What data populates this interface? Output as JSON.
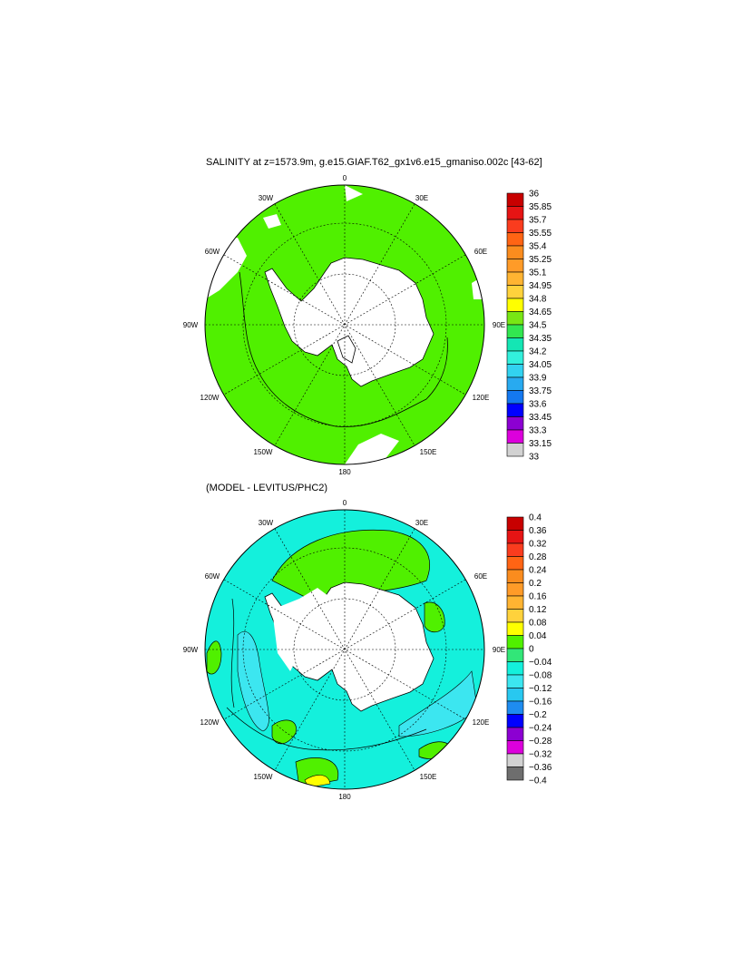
{
  "panels": [
    {
      "title": "SALINITY at z=1573.9m, g.e15.GIAF.T62_gx1v6.e15_gmaniso.002c [43-62]",
      "lon_labels": {
        "n": "0",
        "ne": "30E",
        "ene": "60E",
        "e": "90E",
        "ese": "120E",
        "se": "150E",
        "s": "180",
        "sw": "150W",
        "wsw": "120W",
        "w": "90W",
        "wnw": "60W",
        "nw": "30W"
      },
      "colorbar": {
        "labels": [
          "36",
          "35.85",
          "35.7",
          "35.55",
          "35.4",
          "35.25",
          "35.1",
          "34.95",
          "34.8",
          "34.65",
          "34.5",
          "34.35",
          "34.2",
          "34.05",
          "33.9",
          "33.75",
          "33.6",
          "33.45",
          "33.3",
          "33.15",
          "33"
        ],
        "colors": [
          "#c80000",
          "#e61414",
          "#fa3c1e",
          "#ff6414",
          "#fa8c1e",
          "#ff9b28",
          "#ffb432",
          "#ffd23c",
          "#ffff00",
          "#78e614",
          "#32e650",
          "#14e6b4",
          "#32f0dc",
          "#32d2f0",
          "#28aaf0",
          "#1478f0",
          "#0000ff",
          "#8c00d2",
          "#dc00dc",
          "#d2d2d2",
          "#6e6e6e"
        ]
      },
      "field_colors": {
        "ocean": "#50f000",
        "ocean2": "#50f000",
        "land": "#ffffff",
        "contour": "#000000"
      }
    },
    {
      "title": "(MODEL - LEVITUS/PHC2)",
      "lon_labels": {
        "n": "0",
        "ne": "30E",
        "ene": "60E",
        "e": "90E",
        "ese": "120E",
        "se": "150E",
        "s": "180",
        "sw": "150W",
        "wsw": "120W",
        "w": "90W",
        "wnw": "60W",
        "nw": "30W"
      },
      "colorbar": {
        "labels": [
          "0.4",
          "0.36",
          "0.32",
          "0.28",
          "0.24",
          "0.2",
          "0.16",
          "0.12",
          "0.08",
          "0.04",
          "0",
          "−0.04",
          "−0.08",
          "−0.12",
          "−0.16",
          "−0.2",
          "−0.24",
          "−0.28",
          "−0.32",
          "−0.36",
          "−0.4"
        ],
        "colors": [
          "#c80000",
          "#e61414",
          "#fa3c1e",
          "#ff6414",
          "#fa8c1e",
          "#ff9b28",
          "#ffb432",
          "#ffd23c",
          "#ffff00",
          "#50f000",
          "#32e678",
          "#14f0dc",
          "#3ce6f0",
          "#28c8f0",
          "#1e8cf0",
          "#0000ff",
          "#8c00d2",
          "#dc00dc",
          "#d2d2d2",
          "#6e6e6e"
        ]
      },
      "field_colors": {
        "ocean": "#14f0dc",
        "ocean2": "#50f000",
        "land": "#ffffff",
        "contour": "#000000"
      }
    }
  ]
}
